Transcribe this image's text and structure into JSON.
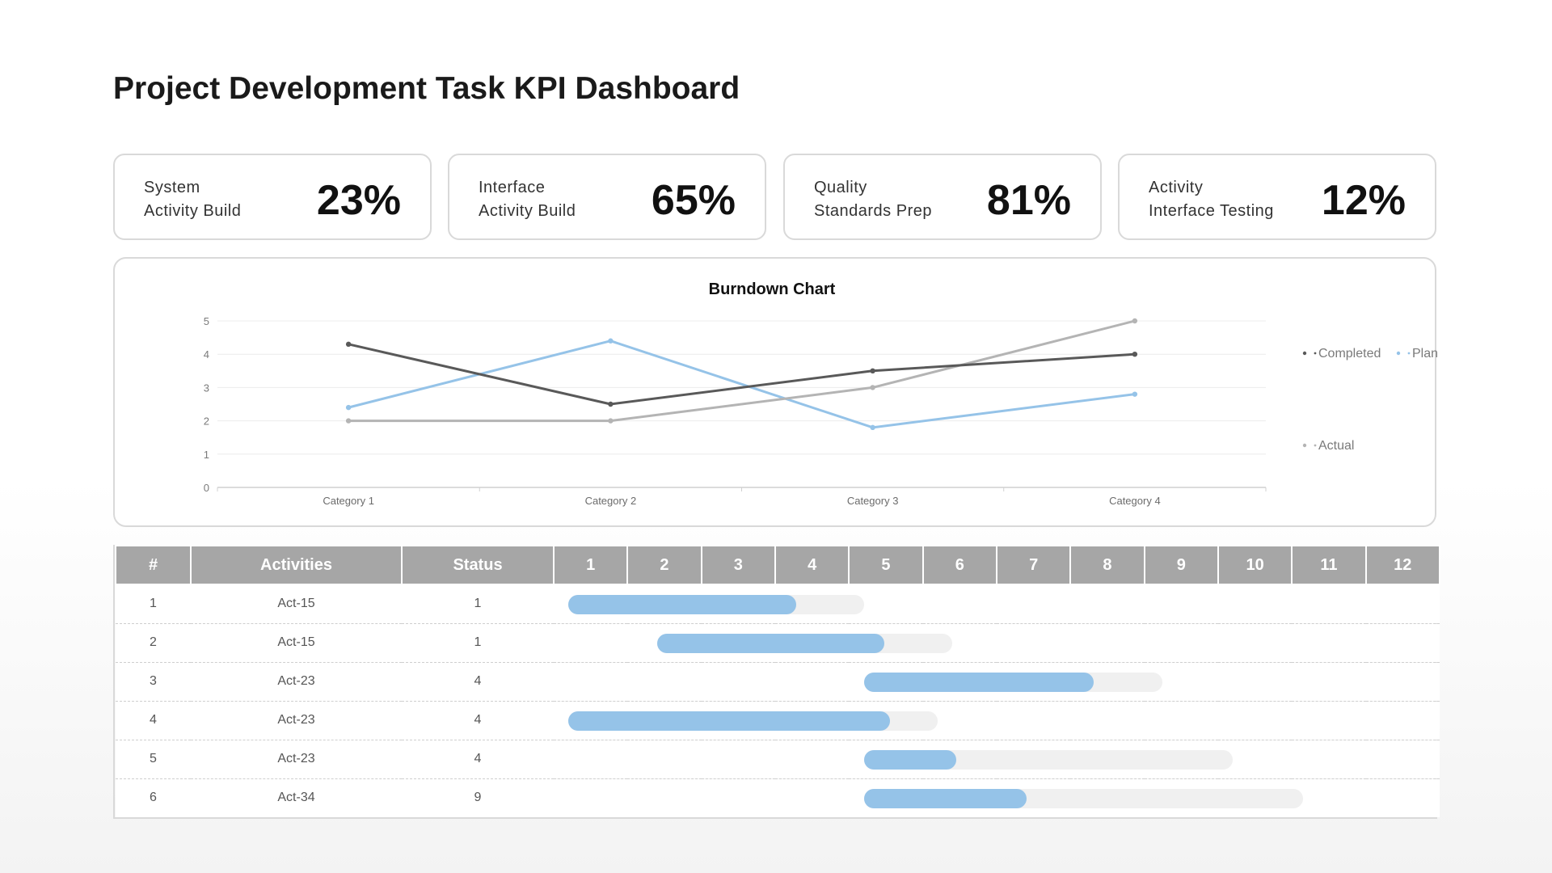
{
  "title": "Project Development Task KPI Dashboard",
  "kpis": [
    {
      "line1": "System",
      "line2": "Activity Build",
      "value": "23%"
    },
    {
      "line1": "Interface",
      "line2": "Activity Build",
      "value": "65%"
    },
    {
      "line1": "Quality",
      "line2": "Standards Prep",
      "value": "81%"
    },
    {
      "line1": "Activity",
      "line2": "Interface Testing",
      "value": "12%"
    }
  ],
  "chart_data": {
    "type": "line",
    "title": "Burndown Chart",
    "categories": [
      "Category 1",
      "Category 2",
      "Category 3",
      "Category 4"
    ],
    "ylim": [
      0,
      5
    ],
    "yticks": [
      "0",
      "1",
      "2",
      "3",
      "4",
      "5"
    ],
    "grid": true,
    "legend_placement": "right",
    "series": [
      {
        "name": "Completed",
        "values": [
          4.3,
          2.5,
          3.5,
          4.0
        ],
        "color": "#595959"
      },
      {
        "name": "Planned",
        "values": [
          2.4,
          4.4,
          1.8,
          2.8
        ],
        "color": "#95c3e8"
      },
      {
        "name": "Actual",
        "values": [
          2.0,
          2.0,
          3.0,
          5.0
        ],
        "color": "#b4b4b4"
      }
    ]
  },
  "table": {
    "headers": [
      "#",
      "Activities",
      "Status",
      "1",
      "2",
      "3",
      "4",
      "5",
      "6",
      "7",
      "8",
      "9",
      "10",
      "11",
      "12"
    ],
    "rows": [
      {
        "num": "1",
        "activity": "Act-15",
        "status": "1",
        "start": 1.2,
        "end": 5.2,
        "progress": 0.77
      },
      {
        "num": "2",
        "activity": "Act-15",
        "status": "1",
        "start": 2.4,
        "end": 6.4,
        "progress": 0.77
      },
      {
        "num": "3",
        "activity": "Act-23",
        "status": "4",
        "start": 5.2,
        "end": 9.25,
        "progress": 0.77
      },
      {
        "num": "4",
        "activity": "Act-23",
        "status": "4",
        "start": 1.2,
        "end": 6.2,
        "progress": 0.87
      },
      {
        "num": "5",
        "activity": "Act-23",
        "status": "4",
        "start": 5.2,
        "end": 10.2,
        "progress": 0.25
      },
      {
        "num": "6",
        "activity": "Act-34",
        "status": "9",
        "start": 5.2,
        "end": 11.15,
        "progress": 0.37
      }
    ]
  }
}
